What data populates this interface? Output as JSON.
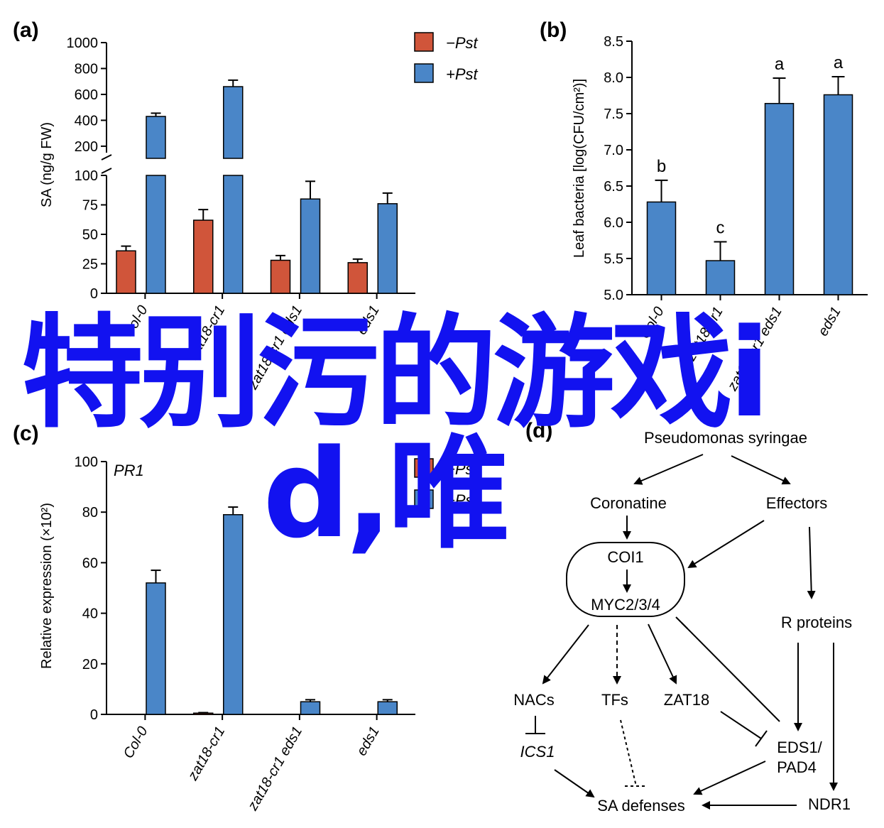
{
  "overlay_text": {
    "line1": "特别污的游戏i",
    "line2": "d,唯"
  },
  "colors": {
    "minus_pst": "#d0553a",
    "plus_pst": "#4a86c8",
    "overlay": "#1212f0"
  },
  "panel_a": {
    "label": "(a)",
    "ylabel": "SA (ng/g FW)",
    "legend": [
      "−Pst",
      "+Pst"
    ],
    "upper_ticks": [
      "200",
      "400",
      "600",
      "800",
      "1000"
    ],
    "lower_ticks": [
      "0",
      "25",
      "50",
      "75",
      "100"
    ]
  },
  "panel_b": {
    "label": "(b)",
    "ylabel": "Leaf bacteria [log(CFU/cm²)]",
    "ticks": [
      "5.0",
      "5.5",
      "6.0",
      "6.5",
      "7.0",
      "7.5",
      "8.0",
      "8.5"
    ],
    "significance": [
      "b",
      "c",
      "a",
      "a"
    ]
  },
  "panel_c": {
    "label": "(c)",
    "ylabel": "Relative expression (×10²)",
    "gene": "PR1",
    "legend": [
      "−Pst",
      "+Pst"
    ],
    "ticks": [
      "0",
      "20",
      "40",
      "60",
      "80",
      "100"
    ]
  },
  "panel_d": {
    "label": "(d)",
    "nodes": {
      "pathogen": "Pseudomonas syringae",
      "coronatine": "Coronatine",
      "effectors": "Effectors",
      "coi1": "COI1",
      "myc": "MYC2/3/4",
      "r_proteins": "R proteins",
      "nacs": "NACs",
      "tfs": "TFs",
      "zat18": "ZAT18",
      "ics1": "ICS1",
      "eds1": "EDS1/",
      "pad4": "PAD4",
      "sa_defenses": "SA defenses",
      "ndr1": "NDR1"
    }
  },
  "chart_data": [
    {
      "type": "bar",
      "title": "",
      "xlabel": "",
      "ylabel": "SA (ng/g FW)",
      "categories": [
        "Col-0",
        "zat18-cr1",
        "zat18-cr1 eds1",
        "eds1"
      ],
      "series": [
        {
          "name": "−Pst",
          "values": [
            36,
            62,
            28,
            26
          ],
          "errors": [
            4,
            9,
            4,
            3
          ]
        },
        {
          "name": "+Pst",
          "values": [
            430,
            660,
            80,
            76
          ],
          "errors": [
            25,
            50,
            15,
            9
          ]
        }
      ],
      "ylim": [
        0,
        1000
      ],
      "broken_axis": true,
      "legend_position": "top-right"
    },
    {
      "type": "bar",
      "title": "",
      "xlabel": "",
      "ylabel": "Leaf bacteria [log(CFU/cm²)]",
      "categories": [
        "Col-0",
        "zat18-cr1",
        "zat18-cr1 eds1",
        "eds1"
      ],
      "series": [
        {
          "name": "",
          "values": [
            6.28,
            5.47,
            7.64,
            7.76
          ],
          "errors": [
            0.3,
            0.26,
            0.35,
            0.25
          ]
        }
      ],
      "annotations": [
        "b",
        "c",
        "a",
        "a"
      ],
      "ylim": [
        5.0,
        8.5
      ]
    },
    {
      "type": "bar",
      "title": "PR1",
      "xlabel": "",
      "ylabel": "Relative expression (×10²)",
      "categories": [
        "Col-0",
        "zat18-cr1",
        "zat18-cr1 eds1",
        "eds1"
      ],
      "series": [
        {
          "name": "−Pst",
          "values": [
            0,
            0.5,
            0,
            0
          ],
          "errors": [
            0,
            0.2,
            0,
            0
          ]
        },
        {
          "name": "+Pst",
          "values": [
            52,
            79,
            5,
            5
          ],
          "errors": [
            5,
            3,
            0.8,
            0.8
          ]
        }
      ],
      "ylim": [
        0,
        100
      ],
      "legend_position": "top-right"
    }
  ]
}
